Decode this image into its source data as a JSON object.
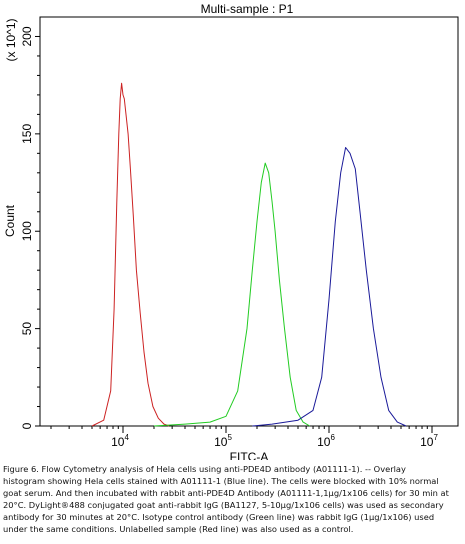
{
  "chart_data": {
    "type": "line",
    "title": "Multi-sample : P1",
    "xlabel": "FITC-A",
    "ylabel": "Count",
    "y_scale_note": "(x 10^1)",
    "x_scale": "log",
    "xlim": [
      1000,
      10000000
    ],
    "ylim": [
      0,
      210
    ],
    "x_ticks": [
      {
        "value": 10000,
        "base": "10",
        "exp": "4"
      },
      {
        "value": 100000,
        "base": "10",
        "exp": "5"
      },
      {
        "value": 1000000,
        "base": "10",
        "exp": "6"
      },
      {
        "value": 10000000,
        "base": "10",
        "exp": "7"
      }
    ],
    "y_ticks": [
      0,
      50,
      100,
      150,
      200
    ],
    "grid": false,
    "legend": "none",
    "series": [
      {
        "color": "#cc2222",
        "x": [
          5000,
          6500,
          7600,
          8200,
          8700,
          9100,
          9400,
          9700,
          10000,
          10300,
          10700,
          11200,
          11800,
          12600,
          13500,
          14700,
          16000,
          17500,
          19500,
          22000,
          25000,
          28000
        ],
        "y": [
          0,
          3,
          18,
          60,
          115,
          150,
          168,
          176,
          170,
          168,
          160,
          150,
          132,
          108,
          80,
          58,
          38,
          22,
          10,
          4,
          1,
          0
        ]
      },
      {
        "color": "#22cc22",
        "x": [
          20000,
          40000,
          70000,
          100000,
          130000,
          160000,
          180000,
          200000,
          220000,
          240000,
          260000,
          280000,
          300000,
          330000,
          370000,
          420000,
          480000,
          560000,
          650000
        ],
        "y": [
          0,
          1,
          2,
          5,
          18,
          50,
          80,
          105,
          125,
          135,
          130,
          115,
          100,
          75,
          50,
          25,
          8,
          2,
          0
        ]
      },
      {
        "color": "#1a1a99",
        "x": [
          180000,
          280000,
          500000,
          700000,
          850000,
          1000000,
          1150000,
          1300000,
          1450000,
          1600000,
          1800000,
          2000000,
          2300000,
          2700000,
          3200000,
          3800000,
          4600000,
          5600000
        ],
        "y": [
          0,
          1,
          3,
          8,
          25,
          65,
          105,
          130,
          143,
          140,
          132,
          110,
          80,
          50,
          25,
          8,
          2,
          0
        ]
      }
    ]
  },
  "caption": {
    "lines": [
      "Figure 6. Flow Cytometry analysis of Hela cells using anti-PDE4D antibody (A01111-1). -- Overlay",
      "histogram showing Hela cells stained with A01111-1 (Blue line). The cells were blocked with 10% normal",
      "goat serum. And then incubated with rabbit anti-PDE4D Antibody (A01111-1,1µg/1x106 cells) for 30 min at",
      "20°C. DyLight®488 conjugated goat anti-rabbit IgG (BA1127, 5-10µg/1x106 cells) was used as secondary",
      "antibody for 30 minutes at 20°C. Isotype control antibody (Green line) was rabbit IgG (1µg/1x106) used",
      "under the same conditions. Unlabelled sample (Red line) was also used as a control."
    ]
  }
}
